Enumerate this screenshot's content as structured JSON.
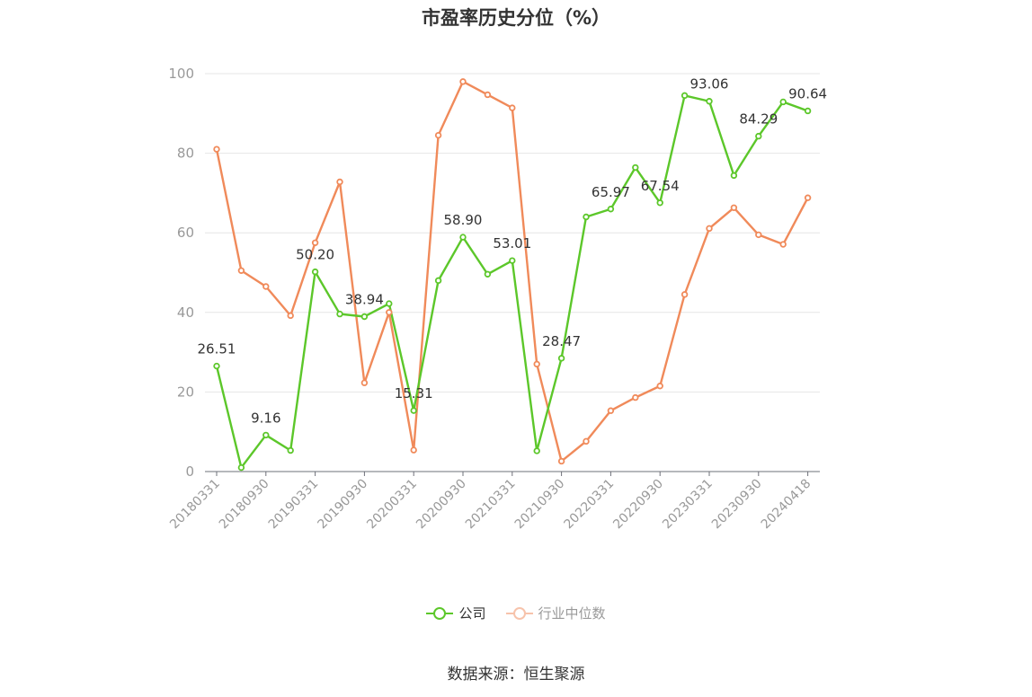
{
  "chart_data": {
    "type": "line",
    "title": "市盈率历史分位（%）",
    "source": "数据来源：恒生聚源",
    "ylim": [
      0,
      100
    ],
    "yticks": [
      0,
      20,
      40,
      60,
      80,
      100
    ],
    "x_tick_labels": [
      "20180331",
      "20180930",
      "20190331",
      "20190930",
      "20200331",
      "20200930",
      "20210331",
      "20210930",
      "20220331",
      "20220930",
      "20230331",
      "20230930",
      "20240418"
    ],
    "grid": true,
    "legend_position": "bottom",
    "series": [
      {
        "name": "公司",
        "color": "#5cc72a",
        "values": [
          26.51,
          1.0,
          9.16,
          5.3,
          50.2,
          39.6,
          38.94,
          42.2,
          15.31,
          48.0,
          58.9,
          49.6,
          53.01,
          5.2,
          28.47,
          64.0,
          65.97,
          76.4,
          67.54,
          94.5,
          93.06,
          74.4,
          84.29,
          92.9,
          90.64
        ],
        "labels": [
          "26.51",
          "",
          "9.16",
          "",
          "50.20",
          "",
          "38.94",
          "",
          "15.31",
          "",
          "58.90",
          "",
          "53.01",
          "",
          "28.47",
          "",
          "65.97",
          "",
          "67.54",
          "",
          "93.06",
          "",
          "84.29",
          "",
          "90.64"
        ]
      },
      {
        "name": "行业中位数",
        "color": "#f08a5a",
        "values": [
          81.0,
          50.5,
          46.5,
          39.2,
          57.5,
          72.8,
          22.3,
          40.0,
          5.4,
          84.5,
          98.0,
          94.7,
          91.4,
          27.0,
          2.6,
          7.6,
          15.3,
          18.6,
          21.5,
          44.5,
          61.1,
          66.3,
          59.5,
          57.1,
          68.8
        ]
      }
    ]
  }
}
